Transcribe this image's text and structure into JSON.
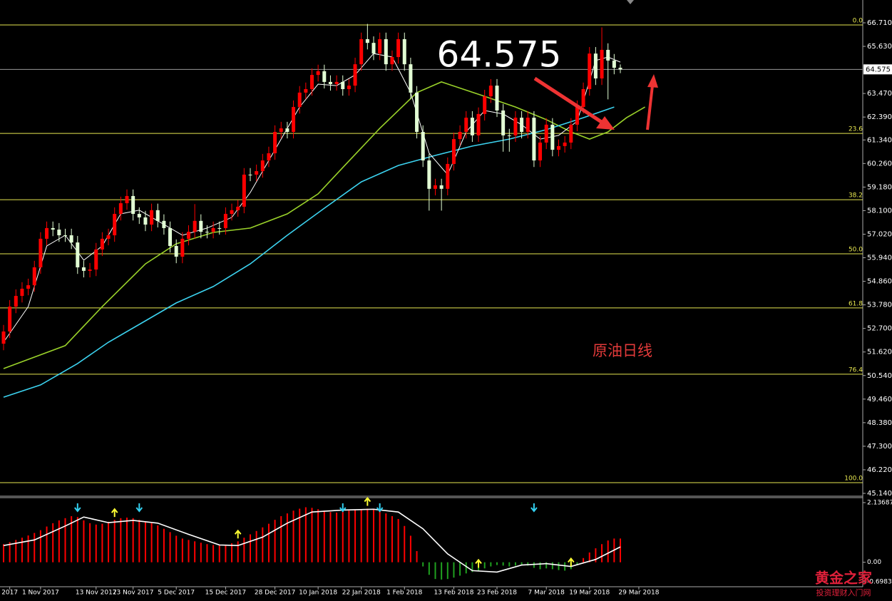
{
  "chart_data": {
    "type": "candlestick",
    "annotation": "原油日线",
    "watermark": [
      "黄金之家",
      "投资理财入门网"
    ],
    "last_price": {
      "value": 64.575,
      "label": "64.575"
    },
    "ylim": [
      45.14,
      67.69
    ],
    "yticks": [
      {
        "value": 66.71,
        "label": "66.710"
      },
      {
        "value": 65.63,
        "label": "65.630"
      },
      {
        "value": 63.47,
        "label": "63.470"
      },
      {
        "value": 62.39,
        "label": "62.390"
      },
      {
        "value": 61.34,
        "label": "61.340"
      },
      {
        "value": 60.26,
        "label": "60.260"
      },
      {
        "value": 59.18,
        "label": "59.180"
      },
      {
        "value": 58.1,
        "label": "58.100"
      },
      {
        "value": 57.02,
        "label": "57.020"
      },
      {
        "value": 55.94,
        "label": "55.940"
      },
      {
        "value": 54.86,
        "label": "54.860"
      },
      {
        "value": 53.78,
        "label": "53.780"
      },
      {
        "value": 52.7,
        "label": "52.700"
      },
      {
        "value": 51.62,
        "label": "51.620"
      },
      {
        "value": 50.54,
        "label": "50.540"
      },
      {
        "value": 49.46,
        "label": "49.460"
      },
      {
        "value": 48.38,
        "label": "48.380"
      },
      {
        "value": 47.3,
        "label": "47.300"
      },
      {
        "value": 46.22,
        "label": "46.220"
      },
      {
        "value": 45.14,
        "label": "45.140"
      }
    ],
    "xticks": [
      {
        "value": 1,
        "label": "2017"
      },
      {
        "value": 6,
        "label": "1 Nov 2017"
      },
      {
        "value": 15,
        "label": "13 Nov 2017"
      },
      {
        "value": 21,
        "label": "23 Nov 2017"
      },
      {
        "value": 28,
        "label": "5 Dec 2017"
      },
      {
        "value": 36,
        "label": "15 Dec 2017"
      },
      {
        "value": 44,
        "label": "28 Dec 2017"
      },
      {
        "value": 51,
        "label": "10 Jan 2018"
      },
      {
        "value": 58,
        "label": "22 Jan 2018"
      },
      {
        "value": 65,
        "label": "1 Feb 2018"
      },
      {
        "value": 73,
        "label": "13 Feb 2018"
      },
      {
        "value": 80,
        "label": "23 Feb 2018"
      },
      {
        "value": 88,
        "label": "7 Mar 2018"
      },
      {
        "value": 95,
        "label": "19 Mar 2018"
      },
      {
        "value": 103,
        "label": "29 Mar 2018"
      }
    ],
    "up_color": "#ff0000",
    "down_color": "#e2ffd4",
    "open": [
      52.0,
      52.56,
      53.7,
      54.19,
      54.52,
      54.68,
      55.5,
      56.81,
      57.3,
      57.23,
      56.97,
      56.97,
      56.64,
      55.5,
      55.34,
      55.4,
      56.32,
      56.81,
      56.97,
      57.95,
      58.44,
      58.77,
      57.95,
      57.79,
      57.46,
      58.12,
      57.63,
      57.3,
      56.48,
      55.99,
      56.81,
      57.13,
      57.63,
      57.13,
      57.13,
      57.3,
      57.3,
      57.95,
      58.12,
      58.28,
      59.75,
      59.75,
      59.91,
      60.4,
      60.73,
      61.71,
      61.87,
      61.71,
      62.85,
      63.51,
      63.67,
      64.32,
      64.49,
      64.0,
      63.9,
      64.0,
      63.67,
      63.83,
      64.81,
      65.96,
      65.79,
      65.3,
      65.96,
      64.81,
      65.14,
      65.96,
      64.81,
      63.51,
      61.71,
      60.4,
      59.1,
      59.26,
      59.1,
      60.24,
      61.38,
      61.71,
      62.36,
      61.55,
      62.53,
      63.34,
      63.83,
      62.69,
      61.55,
      61.55,
      62.36,
      61.71,
      62.36,
      60.4,
      61.22,
      62.04,
      60.89,
      61.06,
      61.22,
      62.04,
      62.85,
      63.67,
      65.3,
      64.16,
      65.47,
      64.98,
      64.65
    ],
    "high": [
      52.86,
      54.0,
      54.49,
      54.82,
      54.98,
      55.8,
      57.11,
      57.6,
      57.6,
      57.53,
      57.27,
      57.27,
      56.94,
      55.8,
      55.7,
      56.62,
      57.11,
      57.27,
      58.25,
      58.74,
      59.07,
      59.07,
      58.25,
      58.09,
      58.42,
      58.42,
      57.93,
      57.6,
      56.78,
      57.11,
      57.43,
      58.4,
      57.93,
      57.43,
      57.6,
      57.6,
      58.25,
      58.42,
      58.58,
      60.05,
      60.05,
      60.21,
      60.7,
      61.03,
      62.01,
      62.17,
      62.17,
      63.15,
      63.81,
      63.97,
      64.62,
      64.79,
      64.79,
      64.3,
      64.3,
      64.3,
      64.13,
      65.11,
      66.26,
      66.66,
      66.09,
      66.26,
      66.26,
      65.44,
      66.26,
      66.26,
      65.11,
      63.81,
      62.01,
      60.7,
      59.56,
      59.56,
      60.54,
      61.68,
      62.01,
      62.66,
      62.66,
      62.83,
      63.64,
      64.13,
      64.13,
      62.99,
      61.85,
      62.66,
      62.66,
      62.66,
      62.66,
      61.52,
      62.34,
      62.34,
      61.36,
      61.52,
      62.34,
      63.15,
      63.97,
      65.6,
      65.6,
      66.5,
      65.77,
      65.28,
      64.8
    ],
    "low": [
      51.7,
      52.26,
      53.4,
      53.89,
      54.22,
      54.38,
      55.2,
      56.51,
      56.93,
      56.67,
      56.67,
      56.34,
      55.2,
      55.04,
      55.04,
      55.1,
      56.02,
      56.51,
      56.67,
      57.65,
      58.14,
      57.65,
      57.49,
      57.16,
      57.16,
      57.33,
      57.0,
      56.18,
      55.69,
      55.69,
      56.51,
      56.83,
      56.83,
      56.83,
      56.83,
      57.0,
      57.0,
      57.65,
      57.82,
      57.98,
      59.45,
      59.45,
      59.61,
      60.1,
      60.43,
      61.41,
      61.41,
      61.41,
      62.55,
      63.21,
      63.37,
      64.02,
      63.7,
      63.6,
      63.6,
      63.37,
      63.37,
      63.53,
      64.51,
      65.49,
      65.0,
      65.0,
      64.51,
      64.51,
      64.84,
      64.51,
      63.21,
      61.41,
      60.1,
      58.1,
      58.8,
      58.1,
      58.8,
      59.94,
      61.08,
      61.41,
      61.25,
      61.25,
      62.23,
      63.04,
      62.39,
      60.8,
      60.8,
      61.25,
      61.41,
      61.41,
      60.1,
      60.1,
      60.92,
      60.59,
      60.59,
      60.76,
      60.92,
      61.74,
      62.55,
      63.37,
      63.86,
      63.86,
      63.2,
      64.35,
      64.4
    ],
    "close": [
      52.56,
      53.7,
      54.19,
      54.52,
      54.68,
      55.5,
      56.81,
      57.3,
      57.23,
      56.97,
      56.97,
      56.64,
      55.5,
      55.34,
      55.4,
      56.32,
      56.81,
      56.97,
      57.95,
      58.44,
      58.77,
      57.95,
      57.79,
      57.46,
      58.12,
      57.63,
      57.3,
      56.48,
      55.99,
      56.81,
      57.13,
      57.63,
      57.13,
      57.13,
      57.3,
      57.3,
      57.95,
      58.12,
      58.28,
      59.75,
      59.75,
      59.91,
      60.4,
      60.73,
      61.71,
      61.87,
      61.71,
      62.85,
      63.51,
      63.67,
      64.32,
      64.49,
      64.0,
      63.9,
      64.0,
      63.67,
      63.83,
      64.81,
      65.96,
      65.79,
      65.3,
      65.96,
      64.81,
      65.14,
      65.96,
      64.81,
      63.51,
      61.71,
      60.4,
      59.1,
      59.26,
      59.1,
      60.24,
      61.38,
      61.71,
      62.36,
      61.55,
      62.53,
      63.34,
      63.83,
      62.69,
      61.55,
      61.55,
      62.36,
      61.71,
      62.36,
      60.4,
      61.22,
      62.04,
      60.89,
      61.06,
      61.22,
      62.04,
      62.85,
      63.67,
      65.3,
      64.16,
      65.47,
      64.98,
      64.65,
      64.575
    ],
    "lines": [
      {
        "color": "#9ad22a",
        "x": [
          0,
          10,
          16,
          23,
          28,
          34,
          40,
          46,
          51,
          55,
          61,
          67,
          71,
          78,
          83,
          88,
          92,
          95,
          98,
          101,
          104
        ],
        "values": [
          50.86,
          51.91,
          53.7,
          55.66,
          56.58,
          57.1,
          57.3,
          57.95,
          58.87,
          60.08,
          61.87,
          63.51,
          64.0,
          63.34,
          62.85,
          62.27,
          61.71,
          61.38,
          61.71,
          62.36,
          62.85
        ]
      },
      {
        "color": "#3cd3f0",
        "x": [
          0,
          6,
          12,
          17,
          23,
          28,
          34,
          40,
          46,
          52,
          58,
          64,
          70,
          76,
          82,
          88,
          94,
          99
        ],
        "values": [
          49.55,
          50.11,
          51.09,
          52.07,
          53.05,
          53.87,
          54.62,
          55.66,
          56.97,
          58.21,
          59.42,
          60.17,
          60.63,
          61.06,
          61.38,
          61.81,
          62.36,
          62.85
        ]
      },
      {
        "color": "#ffffff",
        "x": [
          0,
          4,
          7,
          10,
          13,
          16,
          19,
          22,
          25,
          29,
          33,
          37,
          40,
          44,
          48,
          51,
          54,
          57,
          60,
          63,
          66,
          69,
          72,
          75,
          78,
          81,
          84,
          87,
          90,
          93,
          96,
          98,
          100
        ],
        "values": [
          52.07,
          53.7,
          56.48,
          56.97,
          55.83,
          56.48,
          57.95,
          58.12,
          57.63,
          56.97,
          57.3,
          57.79,
          58.93,
          60.89,
          62.85,
          63.9,
          63.83,
          64.32,
          65.3,
          65.14,
          63.51,
          60.73,
          59.75,
          61.71,
          62.69,
          62.53,
          62.04,
          61.38,
          61.55,
          62.2,
          64.98,
          65.14,
          64.91
        ]
      }
    ],
    "fib_color": "#e6e650",
    "fib_levels": [
      {
        "value": 66.61,
        "label": "0.0"
      },
      {
        "value": 61.64,
        "label": "23.6"
      },
      {
        "value": 58.6,
        "label": "38.2"
      },
      {
        "value": 56.12,
        "label": "50.0"
      },
      {
        "value": 53.64,
        "label": "61.8"
      },
      {
        "value": 50.6,
        "label": "76.4"
      },
      {
        "value": 45.63,
        "label": "100.0"
      }
    ],
    "indicator": {
      "type": "histogram",
      "ylim": [
        -0.69834,
        2.13687
      ],
      "yticks": [
        {
          "value": 2.13687,
          "label": "2.13687"
        },
        {
          "value": 0,
          "label": "0.00"
        },
        {
          "value": -0.69834,
          "label": "-0.69834"
        }
      ],
      "pos_color": "#ff0000",
      "neg_color": "#1fa01f",
      "values": [
        0.65,
        0.72,
        0.8,
        0.88,
        0.96,
        1.05,
        1.15,
        1.28,
        1.4,
        1.5,
        1.58,
        1.65,
        1.62,
        1.5,
        1.4,
        1.35,
        1.38,
        1.45,
        1.52,
        1.58,
        1.6,
        1.58,
        1.52,
        1.45,
        1.4,
        1.32,
        1.2,
        1.08,
        0.95,
        0.85,
        0.8,
        0.75,
        0.7,
        0.65,
        0.62,
        0.6,
        0.62,
        0.68,
        0.75,
        0.88,
        1.0,
        1.12,
        1.25,
        1.38,
        1.52,
        1.65,
        1.75,
        1.85,
        1.92,
        1.97,
        1.95,
        1.9,
        1.85,
        1.8,
        1.78,
        1.8,
        1.85,
        1.88,
        1.9,
        1.92,
        1.9,
        1.85,
        1.75,
        1.65,
        1.55,
        1.3,
        0.95,
        0.4,
        -0.15,
        -0.45,
        -0.6,
        -0.62,
        -0.6,
        -0.55,
        -0.48,
        -0.4,
        -0.35,
        -0.3,
        -0.22,
        -0.15,
        -0.1,
        -0.12,
        -0.15,
        -0.12,
        -0.1,
        -0.12,
        -0.2,
        -0.25,
        -0.22,
        -0.25,
        -0.28,
        -0.3,
        -0.25,
        -0.1,
        0.15,
        0.35,
        0.5,
        0.65,
        0.78,
        0.85,
        0.85
      ],
      "signal": {
        "color": "#ffffff",
        "x": [
          0,
          5,
          10,
          13,
          17,
          21,
          25,
          30,
          35,
          38,
          42,
          46,
          50,
          55,
          60,
          64,
          68,
          72,
          76,
          80,
          84,
          88,
          92,
          96,
          100
        ],
        "values": [
          0.6,
          0.8,
          1.3,
          1.62,
          1.42,
          1.5,
          1.4,
          1.0,
          0.62,
          0.6,
          0.9,
          1.4,
          1.8,
          1.87,
          1.9,
          1.8,
          1.2,
          0.3,
          -0.3,
          -0.35,
          -0.1,
          -0.05,
          -0.15,
          0.1,
          0.55
        ]
      },
      "arrows_down": [
        12,
        22,
        55,
        61,
        86
      ],
      "arrows_up": [
        18,
        38,
        59,
        77,
        92
      ],
      "arrow_down_color": "#33d0f0",
      "arrow_up_color": "#ffff33"
    }
  }
}
